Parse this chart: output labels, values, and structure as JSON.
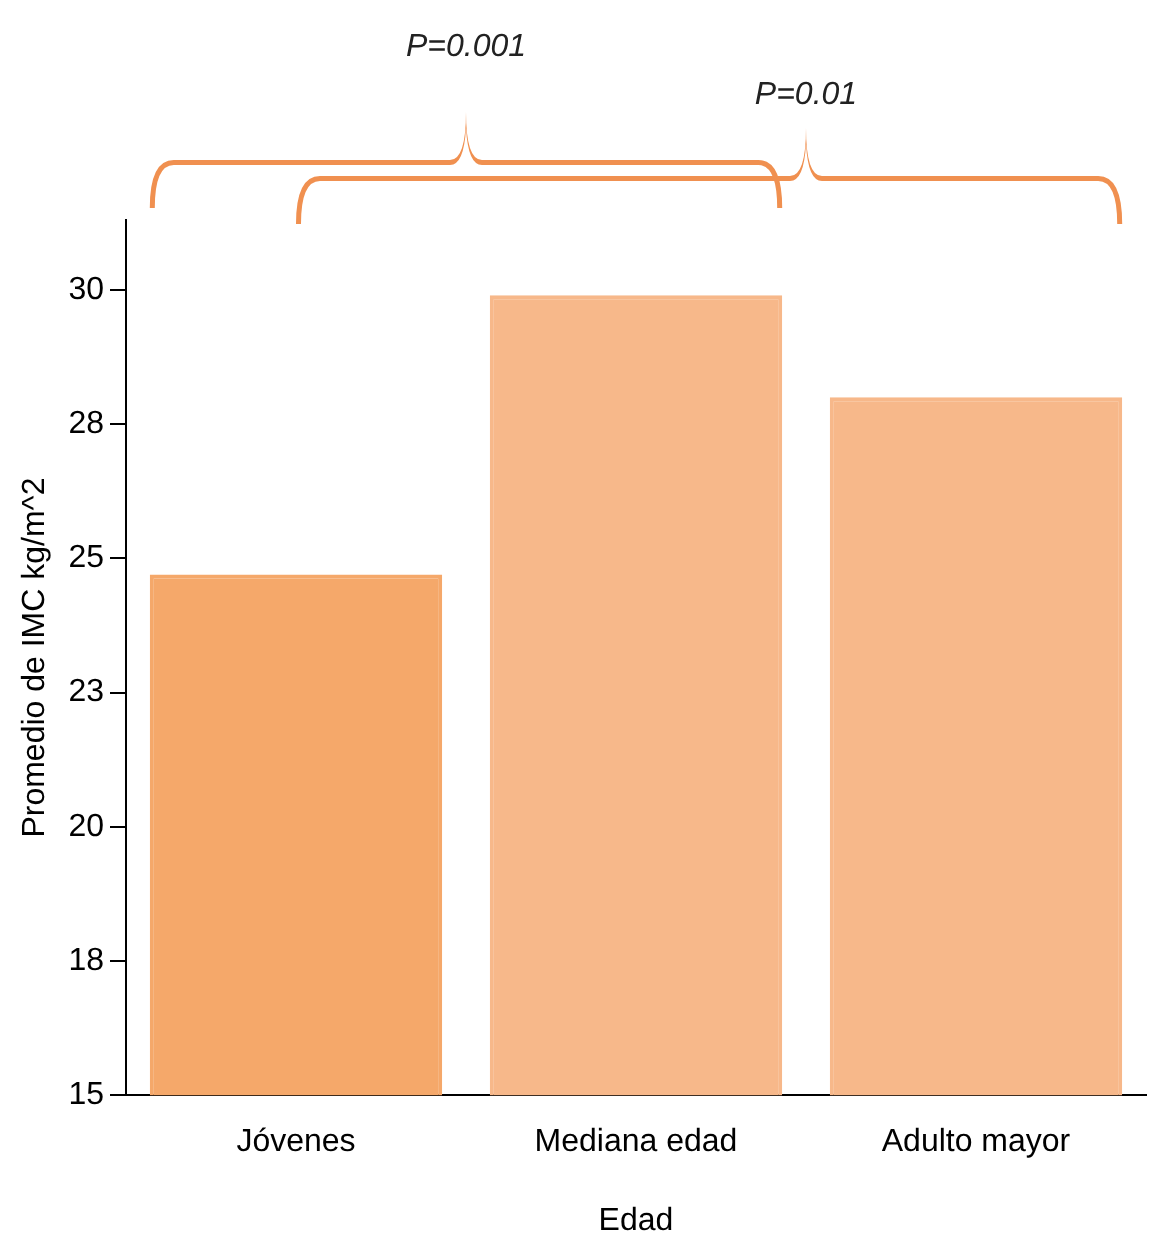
{
  "chart_data": {
    "type": "bar",
    "xlabel": "Edad",
    "ylabel": "Promedio de IMC kg/m^2",
    "categories": [
      "Jóvenes",
      "Mediana edad",
      "Adulto mayor"
    ],
    "values": [
      24.7,
      29.9,
      28.0
    ],
    "colors": [
      "#f5a86a",
      "#f7b88a",
      "#f7b88a"
    ],
    "ylim": [
      15,
      31.3
    ],
    "yticks": [
      15,
      {
        "value": 17.5,
        "label": "18"
      },
      20,
      {
        "value": 22.5,
        "label": "23"
      },
      25,
      {
        "value": 27.5,
        "label": "28"
      },
      30
    ],
    "grid": false,
    "legend": false,
    "annotations": [
      "P=0.001",
      "P=0.01"
    ]
  }
}
